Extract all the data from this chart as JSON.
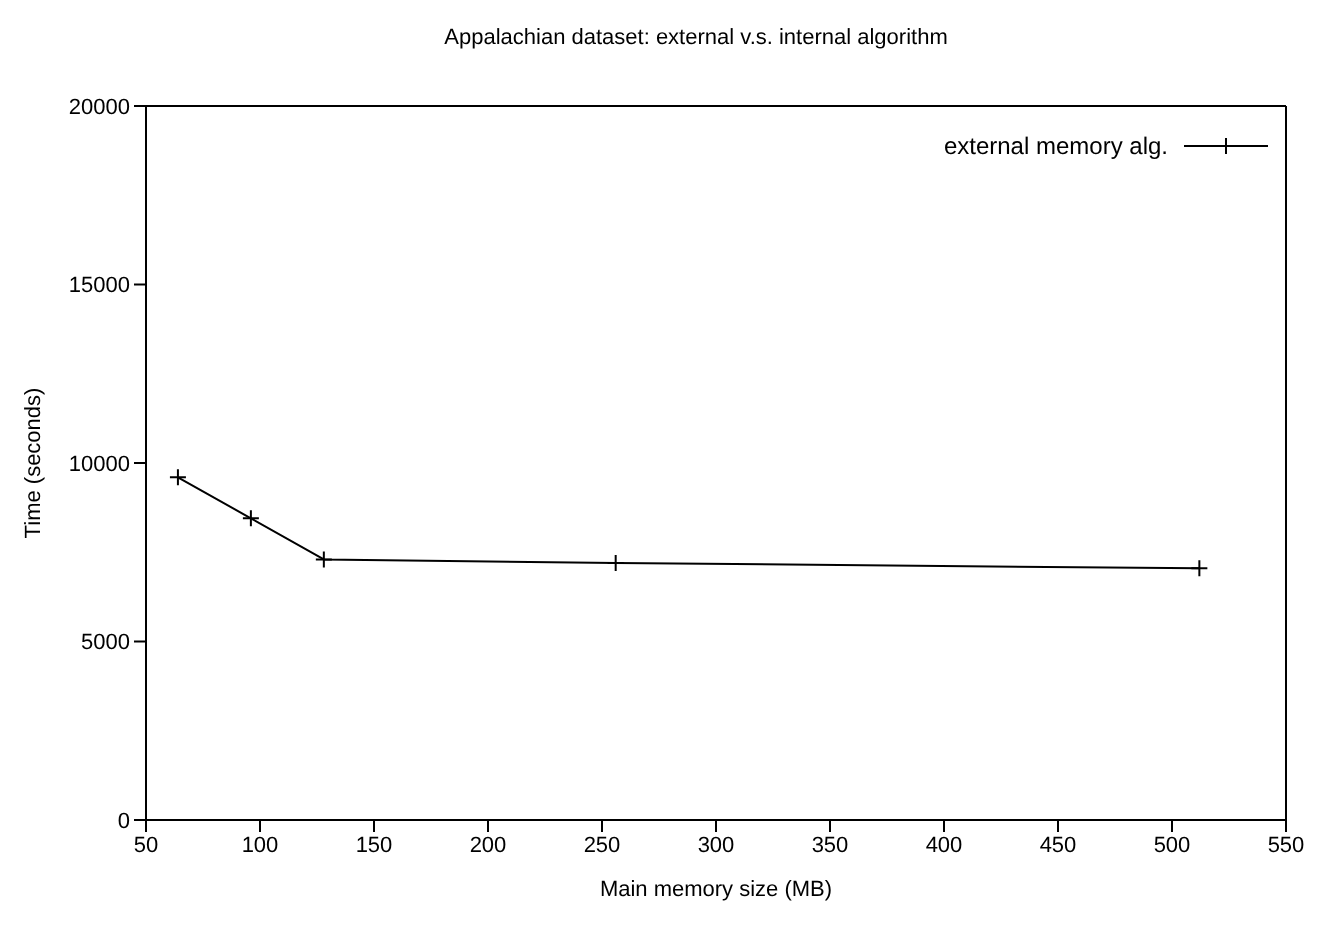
{
  "chart_data": {
    "type": "line",
    "title": "Appalachian dataset: external v.s. internal algorithm",
    "xlabel": "Main memory size (MB)",
    "ylabel": "Time (seconds)",
    "x": [
      64,
      96,
      128,
      256,
      512
    ],
    "series": [
      {
        "name": "external memory alg.",
        "color": "#000000",
        "values": [
          9600,
          8450,
          7300,
          7200,
          7050
        ]
      }
    ],
    "xlim": [
      50,
      550
    ],
    "xticks": [
      50,
      100,
      150,
      200,
      250,
      300,
      350,
      400,
      450,
      500,
      550
    ],
    "ylim": [
      0,
      20000
    ],
    "yticks": [
      0,
      5000,
      10000,
      15000,
      20000
    ],
    "grid": false,
    "legend": "top right",
    "marker": "cross",
    "line_style": "solid"
  }
}
